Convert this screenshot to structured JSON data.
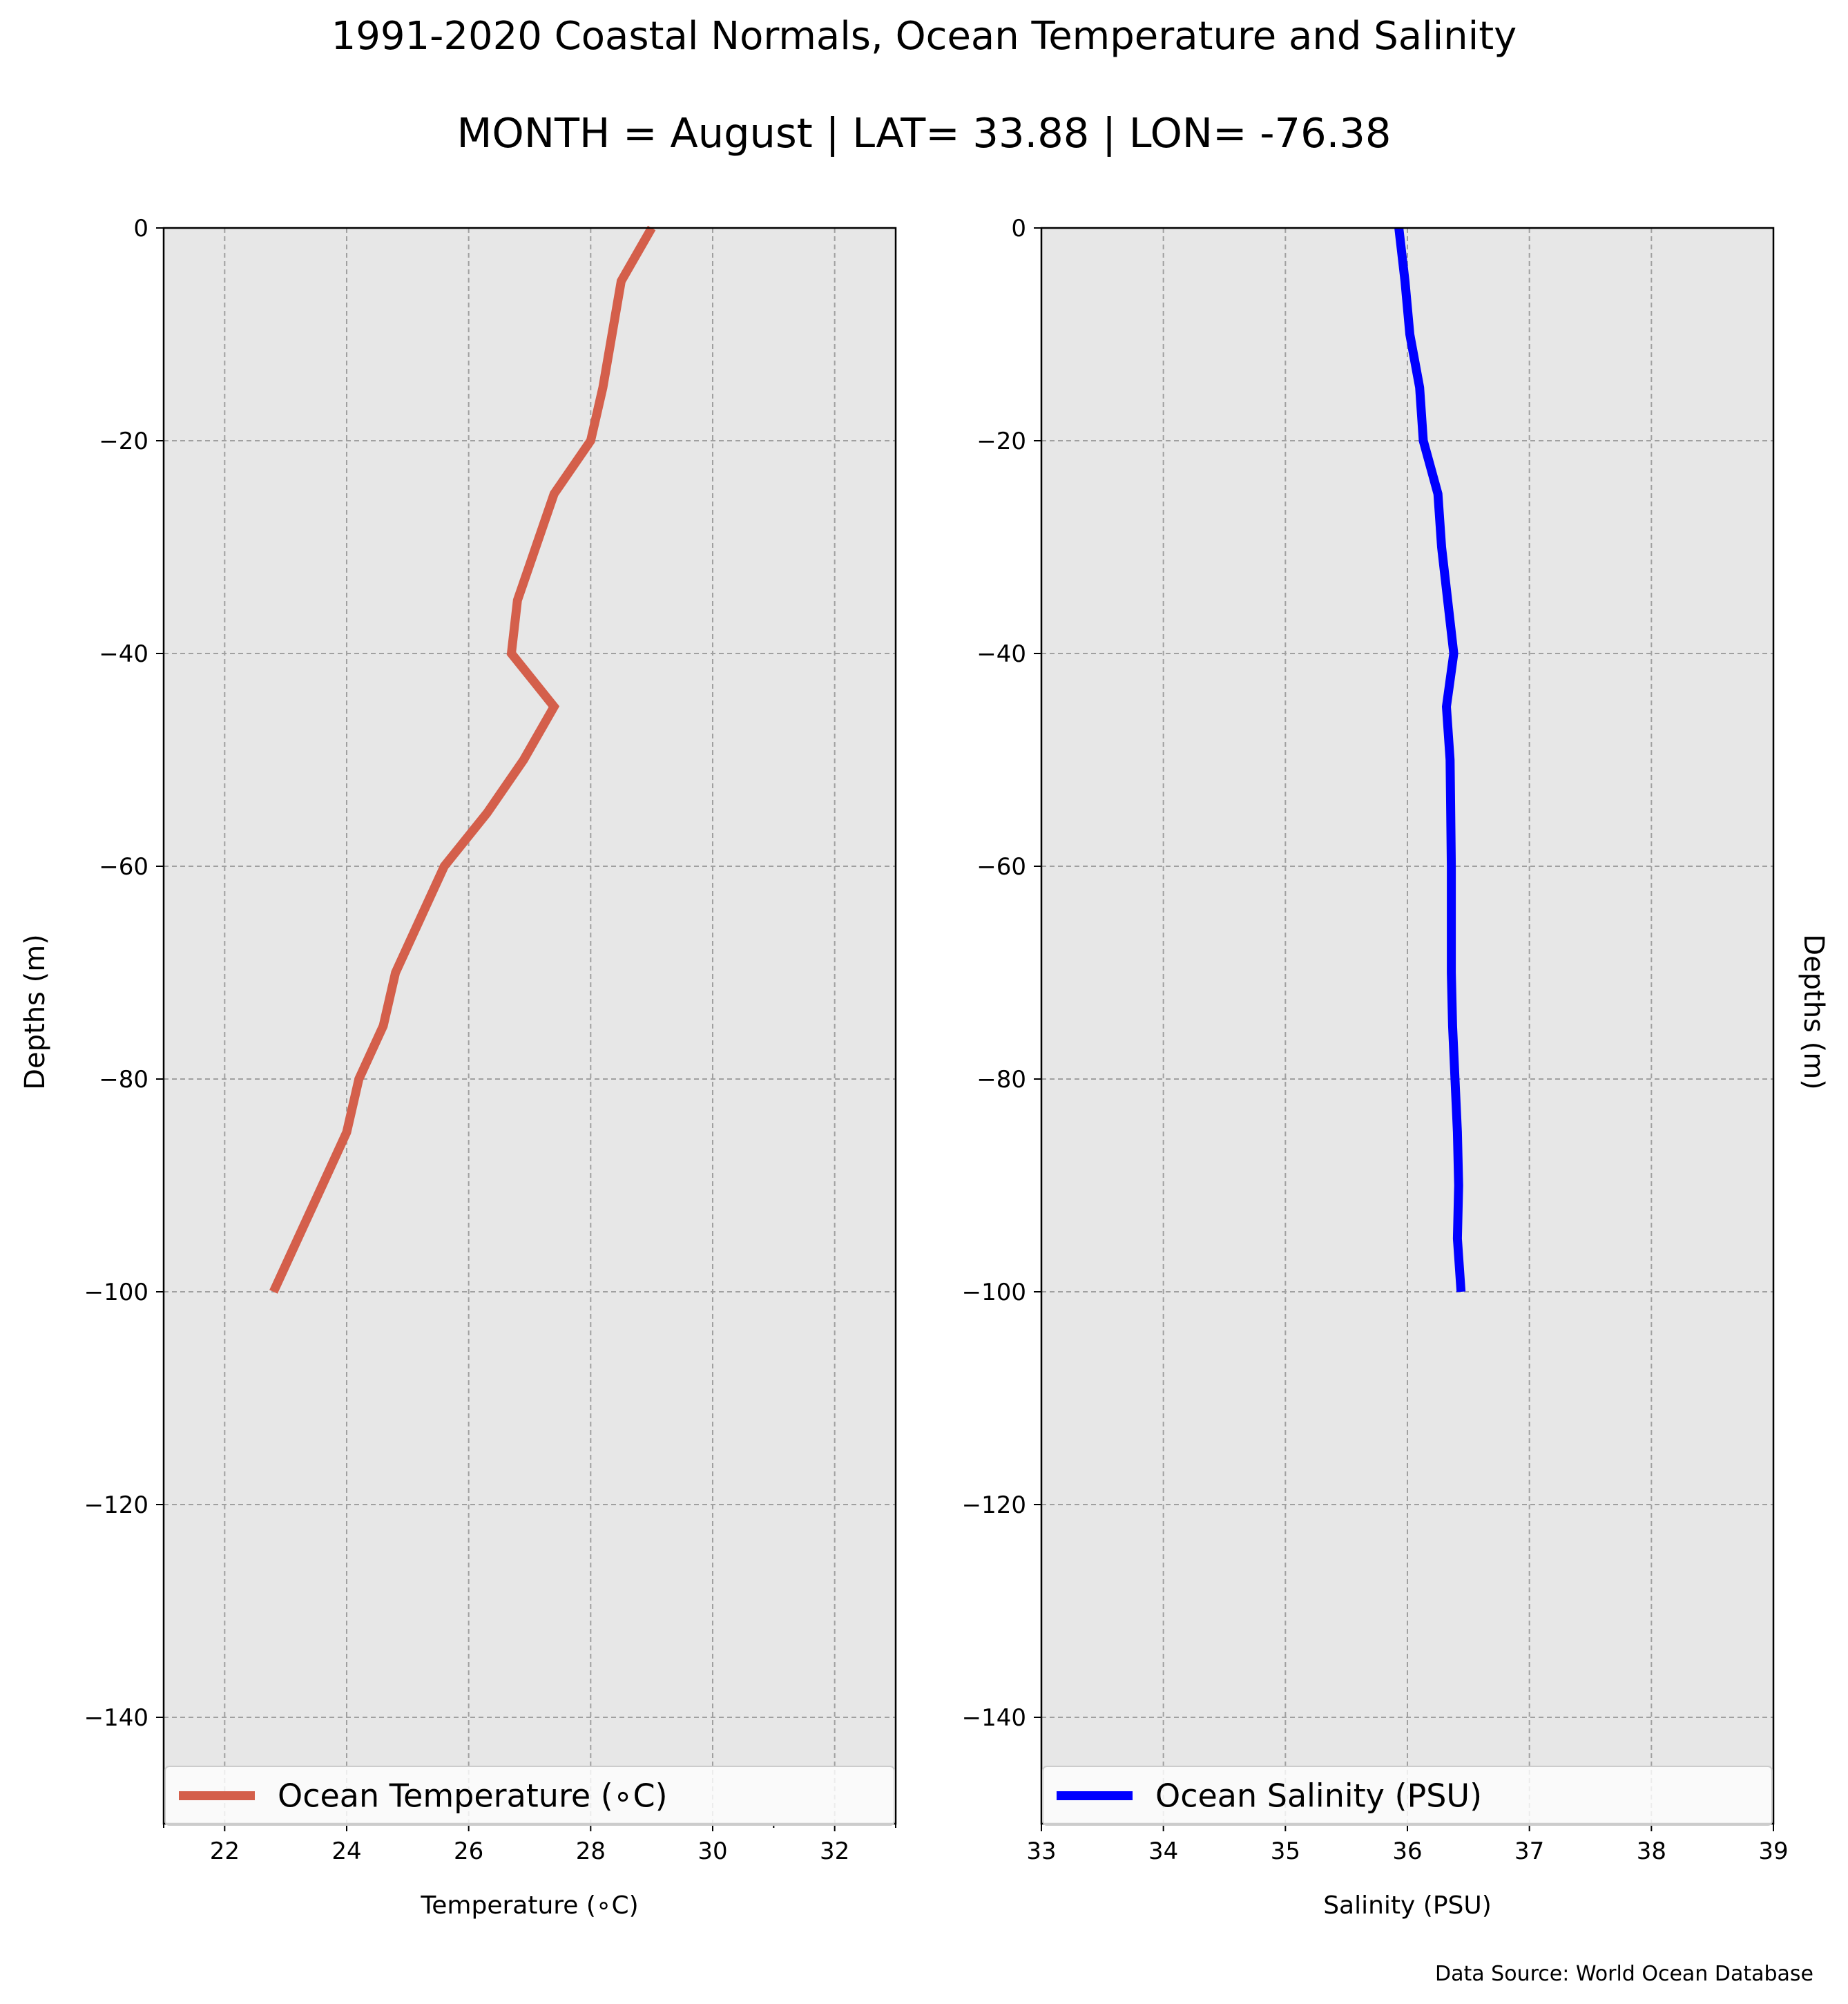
{
  "title": "1991-2020 Coastal Normals, Ocean Temperature and Salinity",
  "subtitle": "MONTH = August | LAT= 33.88 | LON= -76.38",
  "source": "Data Source: World Ocean Database",
  "colors": {
    "background": "#ffffff",
    "axes_bg": "#e7e7e7",
    "grid": "#a0a0a0",
    "temperature": "#d45f4b",
    "salinity": "#0000ff"
  },
  "chart_data": [
    {
      "type": "line",
      "xlabel": "Temperature (∘C)",
      "ylabel": "Depths (m)",
      "xlim": [
        21,
        33
      ],
      "ylim": [
        -150,
        0
      ],
      "xticks": [
        22,
        24,
        26,
        28,
        30,
        32
      ],
      "xticklabels": [
        "22",
        "24",
        "26",
        "28",
        "30",
        "32"
      ],
      "yticks": [
        0,
        -20,
        -40,
        -60,
        -80,
        -100,
        -120,
        -140
      ],
      "yticklabels": [
        "0",
        "−20",
        "−40",
        "−60",
        "−80",
        "−100",
        "−120",
        "−140"
      ],
      "grid": true,
      "legend": "lower center",
      "series": [
        {
          "name": "Ocean Temperature (∘C)",
          "color": "#d45f4b",
          "x": [
            29.0,
            28.5,
            28.2,
            28.0,
            27.4,
            27.1,
            26.8,
            26.7,
            27.4,
            26.9,
            26.3,
            25.6,
            25.2,
            24.8,
            24.6,
            24.2,
            24.0,
            23.6,
            23.2,
            22.8
          ],
          "y": [
            0,
            -5,
            -15,
            -20,
            -25,
            -30,
            -35,
            -40,
            -45,
            -50,
            -55,
            -60,
            -65,
            -70,
            -75,
            -80,
            -85,
            -90,
            -95,
            -100
          ]
        }
      ]
    },
    {
      "type": "line",
      "xlabel": "Salinity (PSU)",
      "ylabel": "Depths (m)",
      "xlim": [
        33,
        39
      ],
      "ylim": [
        -150,
        0
      ],
      "xticks": [
        33,
        34,
        35,
        36,
        37,
        38,
        39
      ],
      "xticklabels": [
        "33",
        "34",
        "35",
        "36",
        "37",
        "38",
        "39"
      ],
      "yticks": [
        0,
        -20,
        -40,
        -60,
        -80,
        -100,
        -120,
        -140
      ],
      "yticklabels": [
        "0",
        "−20",
        "−40",
        "−60",
        "−80",
        "−100",
        "−120",
        "−140"
      ],
      "grid": true,
      "legend": "lower center",
      "series": [
        {
          "name": "Ocean Salinity (PSU)",
          "color": "#0000ff",
          "x": [
            35.93,
            35.98,
            36.02,
            36.1,
            36.13,
            36.25,
            36.28,
            36.33,
            36.38,
            36.32,
            36.35,
            36.36,
            36.36,
            36.36,
            36.37,
            36.39,
            36.41,
            36.42,
            36.41,
            36.44
          ],
          "y": [
            0,
            -5,
            -10,
            -15,
            -20,
            -25,
            -30,
            -35,
            -40,
            -45,
            -50,
            -60,
            -65,
            -70,
            -75,
            -80,
            -85,
            -90,
            -95,
            -100
          ]
        }
      ]
    }
  ]
}
